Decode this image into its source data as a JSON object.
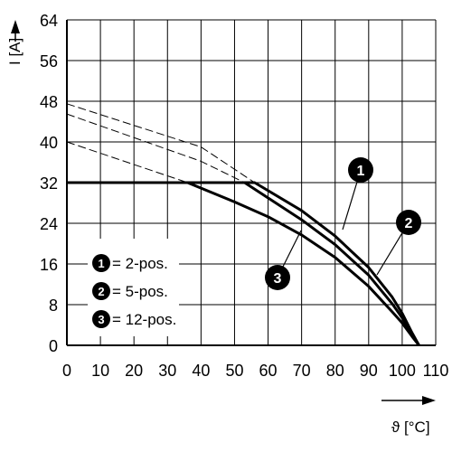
{
  "chart_data": {
    "type": "line",
    "xlabel": "ϑ [°C]",
    "ylabel": "I [A]",
    "xlim": [
      0,
      110
    ],
    "ylim": [
      0,
      64
    ],
    "x_ticks": [
      "0",
      "10",
      "20",
      "30",
      "40",
      "50",
      "60",
      "70",
      "80",
      "90",
      "100",
      "110"
    ],
    "y_ticks": [
      "0",
      "8",
      "16",
      "24",
      "32",
      "40",
      "48",
      "56",
      "64"
    ],
    "grid": true,
    "legend_position": "bottom-left",
    "series": [
      {
        "name": "2-pos.",
        "marker": "1",
        "solid": [
          [
            0,
            32
          ],
          [
            56,
            32
          ],
          [
            70,
            26.5
          ],
          [
            80,
            21.5
          ],
          [
            90,
            15.3
          ],
          [
            97,
            9.5
          ],
          [
            100,
            6.3
          ],
          [
            103,
            2.4
          ],
          [
            105,
            0
          ]
        ],
        "dashed": [
          [
            0,
            47.5
          ],
          [
            40,
            39
          ],
          [
            56,
            32
          ]
        ]
      },
      {
        "name": "5-pos.",
        "marker": "2",
        "solid": [
          [
            0,
            32
          ],
          [
            53,
            32
          ],
          [
            70,
            24.7
          ],
          [
            80,
            19.8
          ],
          [
            90,
            13.8
          ],
          [
            97,
            8.2
          ],
          [
            100,
            5.4
          ],
          [
            103,
            2.0
          ],
          [
            105,
            0
          ]
        ],
        "dashed": [
          [
            0,
            45.5
          ],
          [
            40,
            36.2
          ],
          [
            53,
            32
          ]
        ]
      },
      {
        "name": "12-pos.",
        "marker": "3",
        "solid": [
          [
            0,
            32
          ],
          [
            36,
            32
          ],
          [
            50,
            28.2
          ],
          [
            60,
            25.3
          ],
          [
            70,
            21.7
          ],
          [
            80,
            17.3
          ],
          [
            90,
            11.6
          ],
          [
            97,
            6.6
          ],
          [
            100,
            4.4
          ],
          [
            103,
            1.7
          ],
          [
            105,
            0
          ]
        ],
        "dashed": [
          [
            0,
            40
          ],
          [
            36,
            32
          ]
        ]
      }
    ],
    "legend": [
      {
        "marker": "1",
        "label": "= 2-pos."
      },
      {
        "marker": "2",
        "label": "= 5-pos."
      },
      {
        "marker": "3",
        "label": "= 12-pos."
      }
    ]
  }
}
